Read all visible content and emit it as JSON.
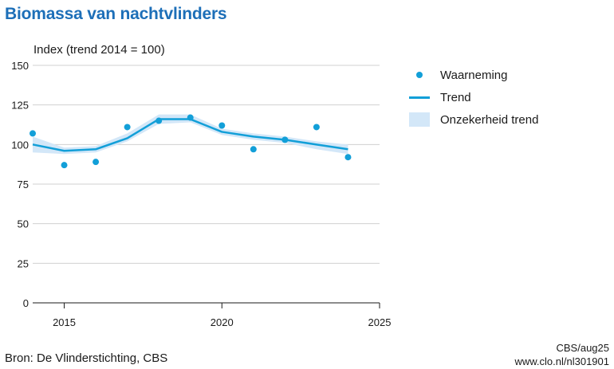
{
  "title": "Biomassa van nachtvlinders",
  "legend": {
    "observation": "Waarneming",
    "trend": "Trend",
    "uncertainty": "Onzekerheid trend"
  },
  "source": "Bron: De Vlinderstichting, CBS",
  "credit_1": "CBS/aug25",
  "credit_2": "www.clo.nl/nl301901",
  "colors": {
    "title": "#1d6fb8",
    "series": "#129fd8",
    "band": "#d3e7f8",
    "grid": "#d0d0d0"
  },
  "chart_data": {
    "type": "line",
    "ylabel": "Index (trend 2014 = 100)",
    "xlim": [
      2014,
      2025
    ],
    "ylim": [
      0,
      150
    ],
    "x_ticks": [
      2015,
      2020,
      2025
    ],
    "y_ticks": [
      0,
      25,
      50,
      75,
      100,
      125,
      150
    ],
    "grid": true,
    "legend_position": "right",
    "series": [
      {
        "name": "Waarneming",
        "kind": "scatter",
        "x": [
          2014,
          2015,
          2016,
          2017,
          2018,
          2019,
          2020,
          2021,
          2022,
          2023,
          2024
        ],
        "y": [
          107,
          87,
          89,
          111,
          115,
          117,
          112,
          97,
          103,
          111,
          92
        ]
      },
      {
        "name": "Trend",
        "kind": "line",
        "x": [
          2014,
          2015,
          2016,
          2017,
          2018,
          2019,
          2020,
          2021,
          2022,
          2023,
          2024
        ],
        "y": [
          100,
          96,
          97,
          104,
          116,
          116,
          108,
          105,
          103,
          100,
          97
        ]
      },
      {
        "name": "Onzekerheid trend",
        "kind": "band",
        "x": [
          2014,
          2015,
          2016,
          2017,
          2018,
          2019,
          2020,
          2021,
          2022,
          2023,
          2024
        ],
        "lower": [
          95,
          94,
          95,
          102,
          113,
          114,
          106,
          103,
          101,
          97,
          94
        ],
        "upper": [
          105,
          98,
          99,
          107,
          119,
          119,
          110,
          107,
          105,
          102,
          100
        ]
      }
    ]
  }
}
